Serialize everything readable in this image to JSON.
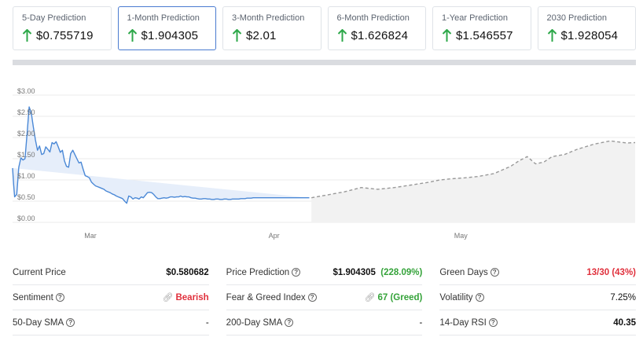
{
  "predictions": [
    {
      "label": "5-Day Prediction",
      "value": "$0.755719",
      "active": false
    },
    {
      "label": "1-Month Prediction",
      "value": "$1.904305",
      "active": true
    },
    {
      "label": "3-Month Prediction",
      "value": "$2.01",
      "active": false
    },
    {
      "label": "6-Month Prediction",
      "value": "$1.626824",
      "active": false
    },
    {
      "label": "1-Year Prediction",
      "value": "$1.546557",
      "active": false
    },
    {
      "label": "2030 Prediction",
      "value": "$1.928054",
      "active": false
    }
  ],
  "colors": {
    "accent_border": "#4a7bd0",
    "up_arrow": "#2ea84a",
    "history_line": "#4a88d6",
    "history_fill": "#e6eefa",
    "forecast_line": "#999999",
    "forecast_fill": "#f2f2f2",
    "bearish_red": "#e0303c",
    "greed_green": "#35a33a"
  },
  "chart_data": {
    "type": "line",
    "x_ticks": [
      "Mar",
      "Apr",
      "May"
    ],
    "y_ticks": [
      "$0.00",
      "$0.50",
      "$1.00",
      "$1.50",
      "$2.00",
      "$2.50",
      "$3.00"
    ],
    "ylim": [
      0,
      3
    ],
    "grid": true,
    "series": [
      {
        "kind": "history",
        "x": [
          0,
          0.5,
          1,
          2,
          3,
          4,
          5,
          6,
          7,
          8,
          9,
          10,
          11,
          12,
          13,
          14,
          15,
          16,
          17,
          18,
          19,
          20,
          21,
          22,
          23,
          24,
          25,
          26,
          27,
          28,
          29,
          30,
          31,
          32,
          33,
          34,
          35,
          36,
          37,
          38,
          39,
          40,
          41,
          42,
          43,
          44,
          45,
          46,
          47,
          48,
          49,
          50,
          51,
          52,
          53,
          54,
          55,
          56,
          57,
          58,
          59,
          60,
          61,
          62,
          63,
          64,
          65,
          66,
          67,
          68,
          69,
          70,
          71,
          72,
          73,
          74,
          75,
          76,
          77,
          78,
          79,
          80,
          81,
          82,
          83,
          84,
          85,
          86,
          87,
          88,
          89,
          90,
          91,
          92,
          93,
          94,
          95,
          96,
          97,
          98,
          99,
          100,
          101,
          102,
          103,
          104,
          105,
          106,
          107,
          108,
          109,
          110,
          111,
          112,
          113,
          114,
          115,
          116,
          117,
          118,
          119,
          120,
          121,
          122,
          123,
          124,
          125,
          126,
          127,
          128,
          129,
          130,
          131,
          132,
          133,
          134,
          135,
          136,
          137,
          138,
          139,
          140,
          141,
          142,
          143,
          144
        ],
        "y": [
          1.28,
          0.9,
          0.6,
          0.66,
          1.3,
          1.52,
          1.47,
          1.5,
          2.1,
          2.72,
          2.58,
          2.25,
          1.95,
          1.7,
          1.8,
          1.6,
          1.62,
          1.78,
          1.72,
          1.66,
          1.88,
          1.85,
          1.9,
          1.78,
          1.65,
          1.7,
          1.45,
          1.32,
          1.3,
          1.62,
          1.7,
          1.6,
          1.5,
          1.4,
          1.42,
          1.25,
          1.1,
          1.08,
          1.05,
          0.95,
          0.9,
          0.86,
          0.84,
          0.82,
          0.8,
          0.78,
          0.74,
          0.72,
          0.7,
          0.67,
          0.65,
          0.62,
          0.6,
          0.58,
          0.56,
          0.5,
          0.45,
          0.62,
          0.6,
          0.55,
          0.58,
          0.57,
          0.55,
          0.6,
          0.58,
          0.64,
          0.7,
          0.71,
          0.7,
          0.66,
          0.6,
          0.56,
          0.56,
          0.57,
          0.58,
          0.57,
          0.58,
          0.6,
          0.6,
          0.59,
          0.6,
          0.6,
          0.62,
          0.6,
          0.61,
          0.6,
          0.6,
          0.58,
          0.57,
          0.57,
          0.56,
          0.55,
          0.55,
          0.56,
          0.56,
          0.55,
          0.55,
          0.54,
          0.54,
          0.55,
          0.55,
          0.54,
          0.54,
          0.55,
          0.55,
          0.54,
          0.54,
          0.55,
          0.55,
          0.55,
          0.55,
          0.56,
          0.56,
          0.56,
          0.57,
          0.57,
          0.57,
          0.58,
          0.58,
          0.58,
          0.58,
          0.58,
          0.58,
          0.58,
          0.58,
          0.58,
          0.58,
          0.58,
          0.58,
          0.58,
          0.58,
          0.58,
          0.58,
          0.58,
          0.58,
          0.58,
          0.58,
          0.58,
          0.58,
          0.58,
          0.58,
          0.58,
          0.58,
          0.58,
          0.58
        ]
      },
      {
        "kind": "forecast",
        "x": [
          144,
          152,
          160,
          168,
          176,
          184,
          192,
          200,
          206,
          212,
          218,
          224,
          232,
          240,
          244,
          248,
          252,
          256,
          260,
          266,
          272,
          280,
          288,
          296,
          300
        ],
        "y": [
          0.58,
          0.65,
          0.72,
          0.82,
          0.78,
          0.82,
          0.88,
          0.94,
          1.0,
          1.03,
          1.05,
          1.08,
          1.15,
          1.32,
          1.45,
          1.55,
          1.38,
          1.42,
          1.55,
          1.6,
          1.72,
          1.84,
          1.92,
          1.87,
          1.88
        ]
      }
    ]
  },
  "stats": [
    [
      {
        "label": "Current Price",
        "value": "$0.580682",
        "style": "bold"
      },
      {
        "label": "Sentiment",
        "value": "Bearish",
        "style": "red",
        "icon": "link-icon"
      },
      {
        "label": "50-Day SMA",
        "value": "-",
        "style": "plain"
      }
    ],
    [
      {
        "label": "Price Prediction",
        "value": "$1.904305",
        "extra": "(228.09%)",
        "style": "bold"
      },
      {
        "label": "Fear & Greed Index",
        "value": "67 (Greed)",
        "style": "green",
        "icon": "link-icon"
      },
      {
        "label": "200-Day SMA",
        "value": "-",
        "style": "plain"
      }
    ],
    [
      {
        "label": "Green Days",
        "value": "13/30 (43%)",
        "style": "red"
      },
      {
        "label": "Volatility",
        "value": "7.25%",
        "style": "plain"
      },
      {
        "label": "14-Day RSI",
        "value": "40.35",
        "style": "bold"
      }
    ]
  ]
}
